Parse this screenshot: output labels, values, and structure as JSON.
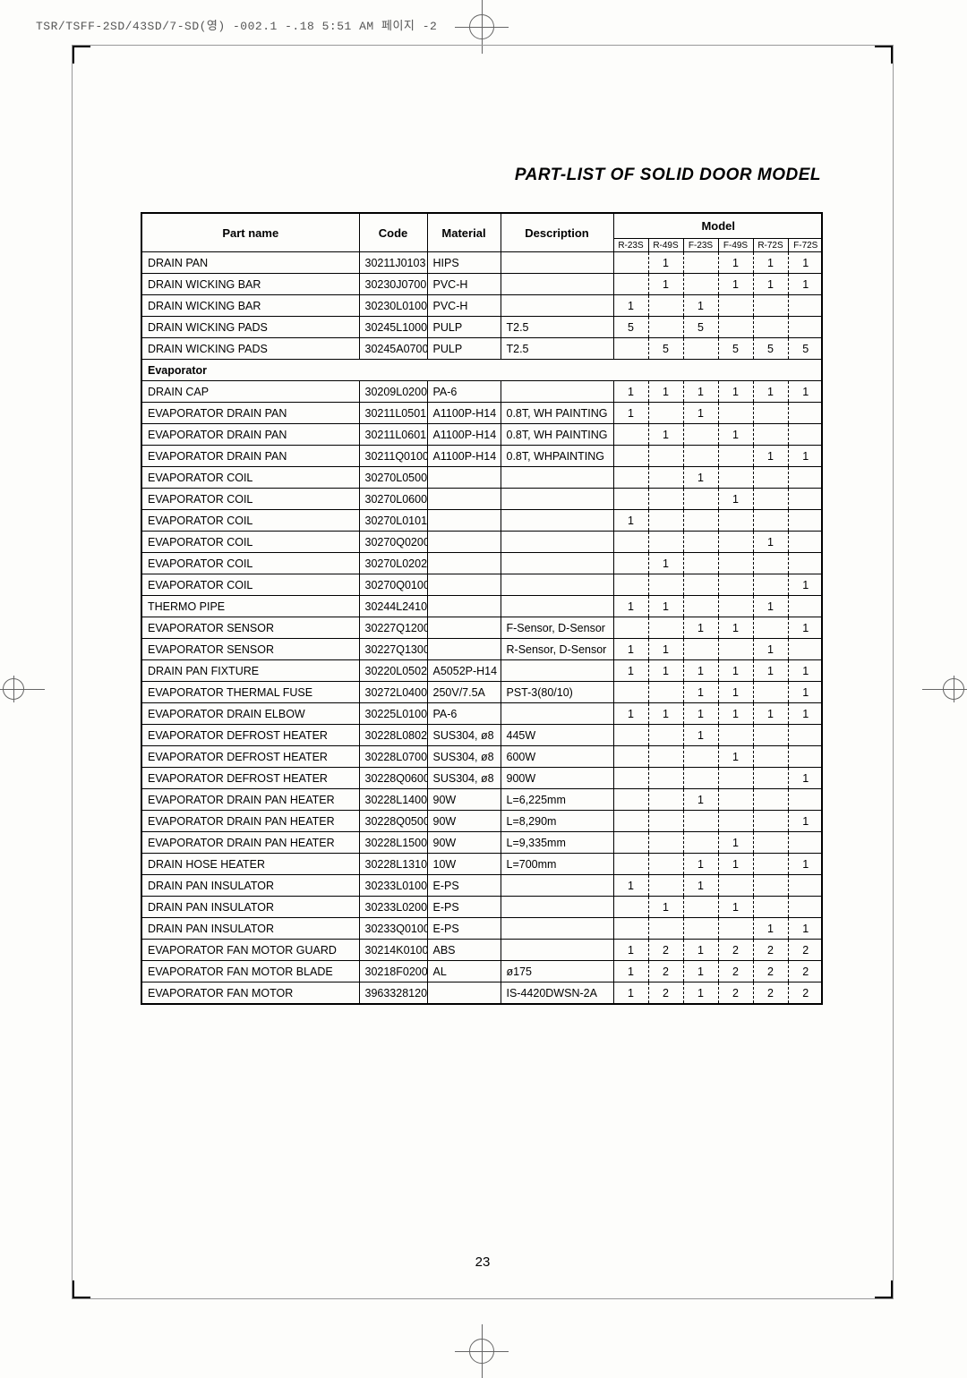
{
  "header_line": "TSR/TSFF-2SD/43SD/7-SD(영)  -002.1 -.18 5:51 AM  페이지 -2",
  "title": "PART-LIST OF SOLID DOOR MODEL",
  "page_number": "23",
  "columns": {
    "part": "Part name",
    "code": "Code",
    "material": "Material",
    "description": "Description",
    "model": "Model",
    "models": [
      "R-23S",
      "R-49S",
      "F-23S",
      "F-49S",
      "R-72S",
      "F-72S"
    ]
  },
  "rows": [
    {
      "part": "DRAIN PAN",
      "code": "30211J0103",
      "mat": "HIPS",
      "desc": "",
      "m": [
        "",
        "1",
        "",
        "1",
        "1",
        "1"
      ]
    },
    {
      "part": "DRAIN WICKING BAR",
      "code": "30230J0700",
      "mat": "PVC-H",
      "desc": "",
      "m": [
        "",
        "1",
        "",
        "1",
        "1",
        "1"
      ]
    },
    {
      "part": "DRAIN WICKING BAR",
      "code": "30230L0100",
      "mat": "PVC-H",
      "desc": "",
      "m": [
        "1",
        "",
        "1",
        "",
        "",
        ""
      ]
    },
    {
      "part": "DRAIN WICKING PADS",
      "code": "30245L1000",
      "mat": "PULP",
      "desc": "T2.5",
      "m": [
        "5",
        "",
        "5",
        "",
        "",
        ""
      ]
    },
    {
      "part": "DRAIN WICKING PADS",
      "code": "30245A0700",
      "mat": "PULP",
      "desc": "T2.5",
      "m": [
        "",
        "5",
        "",
        "5",
        "5",
        "5"
      ]
    },
    {
      "section": "Evaporator"
    },
    {
      "part": "DRAIN CAP",
      "code": "30209L0200",
      "mat": "PA-6",
      "desc": "",
      "m": [
        "1",
        "1",
        "1",
        "1",
        "1",
        "1"
      ]
    },
    {
      "part": "EVAPORATOR DRAIN PAN",
      "code": "30211L0501",
      "mat": "A1100P-H14",
      "desc": "0.8T, WH PAINTING",
      "m": [
        "1",
        "",
        "1",
        "",
        "",
        ""
      ]
    },
    {
      "part": "EVAPORATOR DRAIN PAN",
      "code": "30211L0601",
      "mat": "A1100P-H14",
      "desc": "0.8T, WH PAINTING",
      "m": [
        "",
        "1",
        "",
        "1",
        "",
        ""
      ]
    },
    {
      "part": "EVAPORATOR DRAIN PAN",
      "code": "30211Q0100",
      "mat": "A1100P-H14",
      "desc": "0.8T, WHPAINTING",
      "m": [
        "",
        "",
        "",
        "",
        "1",
        "1"
      ]
    },
    {
      "part": "EVAPORATOR COIL",
      "code": "30270L0500",
      "mat": "",
      "desc": "",
      "m": [
        "",
        "",
        "1",
        "",
        "",
        ""
      ]
    },
    {
      "part": "EVAPORATOR COIL",
      "code": "30270L0600",
      "mat": "",
      "desc": "",
      "m": [
        "",
        "",
        "",
        "1",
        "",
        ""
      ]
    },
    {
      "part": "EVAPORATOR COIL",
      "code": "30270L0101",
      "mat": "",
      "desc": "",
      "m": [
        "1",
        "",
        "",
        "",
        "",
        ""
      ]
    },
    {
      "part": "EVAPORATOR COIL",
      "code": "30270Q0200",
      "mat": "",
      "desc": "",
      "m": [
        "",
        "",
        "",
        "",
        "1",
        ""
      ]
    },
    {
      "part": "EVAPORATOR COIL",
      "code": "30270L0202",
      "mat": "",
      "desc": "",
      "m": [
        "",
        "1",
        "",
        "",
        "",
        ""
      ]
    },
    {
      "part": "EVAPORATOR COIL",
      "code": "30270Q0100",
      "mat": "",
      "desc": "",
      "m": [
        "",
        "",
        "",
        "",
        "",
        "1"
      ]
    },
    {
      "part": "THERMO PIPE",
      "code": "30244L2410",
      "mat": "",
      "desc": "",
      "m": [
        "1",
        "1",
        "",
        "",
        "1",
        ""
      ]
    },
    {
      "part": "EVAPORATOR SENSOR",
      "code": "30227Q1200",
      "mat": "",
      "desc": "F-Sensor, D-Sensor",
      "m": [
        "",
        "",
        "1",
        "1",
        "",
        "1"
      ]
    },
    {
      "part": "EVAPORATOR SENSOR",
      "code": "30227Q1300",
      "mat": "",
      "desc": "R-Sensor, D-Sensor",
      "m": [
        "1",
        "1",
        "",
        "",
        "1",
        ""
      ]
    },
    {
      "part": "DRAIN PAN FIXTURE",
      "code": "30220L0502",
      "mat": "A5052P-H14",
      "desc": "",
      "m": [
        "1",
        "1",
        "1",
        "1",
        "1",
        "1"
      ]
    },
    {
      "part": "EVAPORATOR THERMAL FUSE",
      "code": "30272L0400",
      "mat": "250V/7.5A",
      "desc": "PST-3(80/10)",
      "m": [
        "",
        "",
        "1",
        "1",
        "",
        "1"
      ]
    },
    {
      "part": "EVAPORATOR DRAIN ELBOW",
      "code": "30225L0100",
      "mat": "PA-6",
      "desc": "",
      "m": [
        "1",
        "1",
        "1",
        "1",
        "1",
        "1"
      ]
    },
    {
      "part": "EVAPORATOR DEFROST HEATER",
      "code": "30228L0802",
      "mat": "SUS304, ø8",
      "desc": "445W",
      "m": [
        "",
        "",
        "1",
        "",
        "",
        ""
      ]
    },
    {
      "part": "EVAPORATOR DEFROST HEATER",
      "code": "30228L0700",
      "mat": "SUS304, ø8",
      "desc": "600W",
      "m": [
        "",
        "",
        "",
        "1",
        "",
        ""
      ]
    },
    {
      "part": "EVAPORATOR DEFROST HEATER",
      "code": "30228Q0600",
      "mat": "SUS304, ø8",
      "desc": "900W",
      "m": [
        "",
        "",
        "",
        "",
        "",
        "1"
      ]
    },
    {
      "part": "EVAPORATOR DRAIN PAN HEATER",
      "code": "30228L1400",
      "mat": "90W",
      "desc": "L=6,225mm",
      "m": [
        "",
        "",
        "1",
        "",
        "",
        ""
      ]
    },
    {
      "part": "EVAPORATOR DRAIN PAN HEATER",
      "code": "30228Q0500",
      "mat": "90W",
      "desc": "L=8,290m",
      "m": [
        "",
        "",
        "",
        "",
        "",
        "1"
      ]
    },
    {
      "part": "EVAPORATOR DRAIN PAN HEATER",
      "code": "30228L1500",
      "mat": "90W",
      "desc": "L=9,335mm",
      "m": [
        "",
        "",
        "",
        "1",
        "",
        ""
      ]
    },
    {
      "part": "DRAIN HOSE HEATER",
      "code": "30228L1310",
      "mat": "10W",
      "desc": "L=700mm",
      "m": [
        "",
        "",
        "1",
        "1",
        "",
        "1"
      ]
    },
    {
      "part": "DRAIN PAN INSULATOR",
      "code": "30233L0100",
      "mat": "E-PS",
      "desc": "",
      "m": [
        "1",
        "",
        "1",
        "",
        "",
        ""
      ]
    },
    {
      "part": "DRAIN PAN INSULATOR",
      "code": "30233L0200",
      "mat": "E-PS",
      "desc": "",
      "m": [
        "",
        "1",
        "",
        "1",
        "",
        ""
      ]
    },
    {
      "part": "DRAIN PAN INSULATOR",
      "code": "30233Q0100",
      "mat": "E-PS",
      "desc": "",
      "m": [
        "",
        "",
        "",
        "",
        "1",
        "1"
      ]
    },
    {
      "part": "EVAPORATOR FAN MOTOR GUARD",
      "code": "30214K0100",
      "mat": "ABS",
      "desc": "",
      "m": [
        "1",
        "2",
        "1",
        "2",
        "2",
        "2"
      ]
    },
    {
      "part": "EVAPORATOR FAN MOTOR BLADE",
      "code": "30218F0200",
      "mat": "AL",
      "desc": "ø175",
      "m": [
        "1",
        "2",
        "1",
        "2",
        "2",
        "2"
      ]
    },
    {
      "part": "EVAPORATOR FAN MOTOR",
      "code": "3963328120",
      "mat": "",
      "desc": "IS-4420DWSN-2A",
      "m": [
        "1",
        "2",
        "1",
        "2",
        "2",
        "2"
      ]
    }
  ]
}
